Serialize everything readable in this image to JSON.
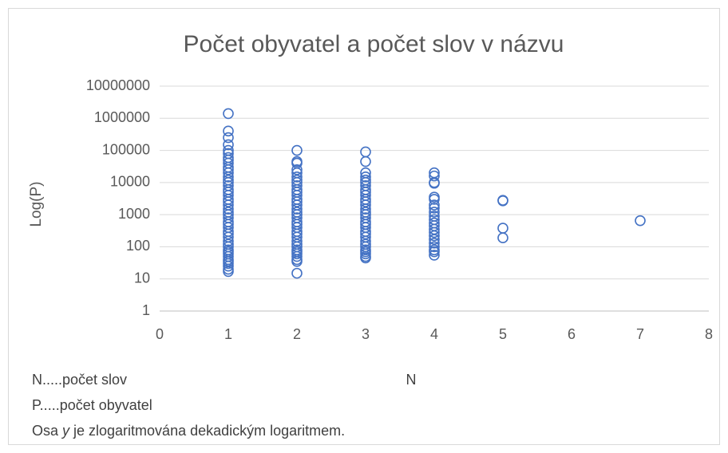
{
  "chart_data": {
    "type": "scatter",
    "title": "Počet obyvatel a počet slov v názvu",
    "y_label": "Log(P)",
    "x_label": "N",
    "notes": [
      [
        "N.....počet slov"
      ],
      [
        "P.....počet obyvatel"
      ],
      [
        "Osa ",
        "y",
        " je zlogaritmována dekadickým logaritmem."
      ]
    ],
    "color": "#4472c4",
    "ylog": true,
    "grid": true,
    "xlim": [
      0,
      8
    ],
    "xticks": [
      0,
      1,
      2,
      3,
      4,
      5,
      6,
      7,
      8
    ],
    "ylim": [
      1,
      10000000
    ],
    "yticks": [
      1,
      10,
      100,
      1000,
      10000,
      100000,
      1000000,
      10000000
    ],
    "x": [
      1,
      1,
      1,
      1,
      1,
      1,
      1,
      1,
      1,
      1,
      1,
      1,
      1,
      1,
      1,
      1,
      1,
      1,
      1,
      1,
      1,
      1,
      1,
      1,
      1,
      1,
      1,
      1,
      1,
      1,
      1,
      1,
      1,
      1,
      1,
      1,
      1,
      1,
      1,
      1,
      1,
      1,
      1,
      1,
      1,
      2,
      2,
      2,
      2,
      2,
      2,
      2,
      2,
      2,
      2,
      2,
      2,
      2,
      2,
      2,
      2,
      2,
      2,
      2,
      2,
      2,
      2,
      2,
      2,
      2,
      2,
      2,
      2,
      2,
      2,
      2,
      2,
      2,
      2,
      2,
      3,
      3,
      3,
      3,
      3,
      3,
      3,
      3,
      3,
      3,
      3,
      3,
      3,
      3,
      3,
      3,
      3,
      3,
      3,
      3,
      3,
      3,
      3,
      3,
      3,
      3,
      3,
      3,
      3,
      3,
      3,
      4,
      4,
      4,
      4,
      4,
      4,
      4,
      4,
      4,
      4,
      4,
      4,
      4,
      4,
      4,
      4,
      4,
      4,
      4,
      4,
      4,
      4,
      5,
      5,
      5,
      5,
      7
    ],
    "values": [
      17,
      20,
      25,
      30,
      35,
      40,
      50,
      60,
      70,
      80,
      100,
      120,
      150,
      200,
      250,
      300,
      400,
      500,
      600,
      800,
      1000,
      1200,
      1500,
      2000,
      2500,
      3000,
      4000,
      5000,
      6000,
      8000,
      10000,
      12000,
      15000,
      20000,
      25000,
      30000,
      40000,
      50000,
      60000,
      80000,
      100000,
      150000,
      250000,
      400000,
      1400000,
      15,
      35,
      40,
      50,
      60,
      70,
      80,
      100,
      120,
      150,
      200,
      250,
      300,
      400,
      500,
      600,
      800,
      1000,
      1200,
      1500,
      2000,
      2500,
      3000,
      4000,
      5000,
      6000,
      8000,
      10000,
      12000,
      15000,
      20000,
      25000,
      40000,
      45000,
      100000,
      45,
      50,
      60,
      70,
      80,
      100,
      120,
      150,
      200,
      250,
      300,
      400,
      500,
      600,
      800,
      1000,
      1200,
      1500,
      2000,
      2500,
      3000,
      4000,
      5000,
      6000,
      8000,
      10000,
      12000,
      15000,
      20000,
      45000,
      90000,
      55,
      70,
      80,
      100,
      130,
      170,
      220,
      280,
      350,
      450,
      550,
      700,
      900,
      1200,
      1600,
      2000,
      3000,
      3500,
      9500,
      10000,
      16000,
      20000,
      190,
      380,
      2700,
      2800,
      650
    ]
  }
}
